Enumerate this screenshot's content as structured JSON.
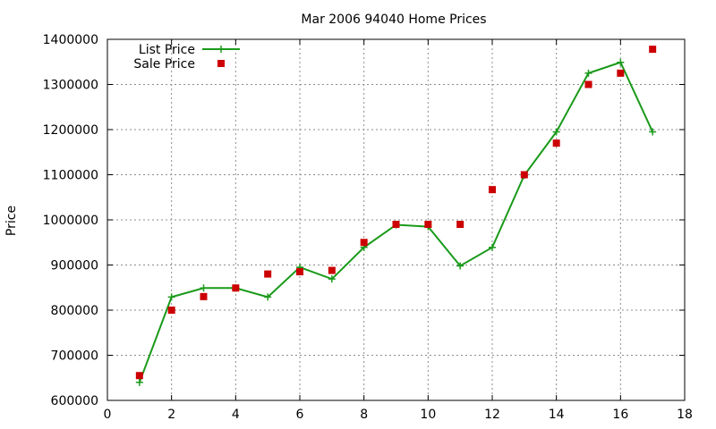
{
  "chart_data": {
    "type": "line",
    "title": "Mar 2006 94040 Home Prices",
    "xlabel": "",
    "ylabel": "Price",
    "xlim": [
      0,
      18
    ],
    "ylim": [
      600000,
      1400000
    ],
    "x_ticks": [
      0,
      2,
      4,
      6,
      8,
      10,
      12,
      14,
      16,
      18
    ],
    "y_ticks": [
      600000,
      700000,
      800000,
      900000,
      1000000,
      1100000,
      1200000,
      1300000,
      1400000
    ],
    "grid": true,
    "legend_position": "top-left",
    "series": [
      {
        "name": "List Price",
        "style": "line-with-plus-markers",
        "color": "#1a9a1a",
        "points": [
          [
            1,
            640000
          ],
          [
            2,
            829000
          ],
          [
            3,
            849000
          ],
          [
            4,
            849000
          ],
          [
            5,
            829000
          ],
          [
            6,
            895000
          ],
          [
            7,
            869000
          ],
          [
            8,
            939000
          ],
          [
            9,
            989000
          ],
          [
            10,
            985000
          ],
          [
            11,
            898000
          ],
          [
            12,
            939000
          ],
          [
            13,
            1099000
          ],
          [
            14,
            1195000
          ],
          [
            15,
            1325000
          ],
          [
            16,
            1349000
          ],
          [
            17,
            1195000
          ]
        ]
      },
      {
        "name": "Sale Price",
        "style": "square-markers",
        "color": "#cc0000",
        "points": [
          [
            1,
            655000
          ],
          [
            2,
            800000
          ],
          [
            3,
            830000
          ],
          [
            4,
            849000
          ],
          [
            5,
            880000
          ],
          [
            6,
            885000
          ],
          [
            7,
            888000
          ],
          [
            8,
            950000
          ],
          [
            9,
            990000
          ],
          [
            10,
            990000
          ],
          [
            11,
            990000
          ],
          [
            12,
            1067000
          ],
          [
            13,
            1100000
          ],
          [
            14,
            1170000
          ],
          [
            15,
            1300000
          ],
          [
            16,
            1325000
          ],
          [
            17,
            1378000
          ]
        ]
      }
    ]
  }
}
